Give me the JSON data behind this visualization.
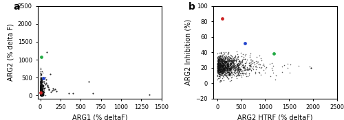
{
  "panel_a": {
    "title": "a",
    "xlabel": "ARG1 (% deltaF)",
    "ylabel": "ARG2 (% delta F)",
    "xlim": [
      -30,
      1500
    ],
    "ylim": [
      -80,
      2500
    ],
    "xticks": [
      0,
      250,
      500,
      750,
      1000,
      1250,
      1500
    ],
    "yticks": [
      0,
      500,
      1000,
      1500,
      2000,
      2500
    ],
    "n_background": 1593,
    "dot_color": "#111111",
    "dot_alpha": 0.85,
    "dot_size": 1.2,
    "cluster_x_scale": 8,
    "cluster_y_scale": 120,
    "outlier_x": [
      80,
      120,
      50,
      600,
      650,
      350,
      1350,
      70,
      90,
      160,
      110,
      180,
      200,
      30,
      55,
      75,
      400,
      45,
      95,
      130,
      65,
      85,
      105,
      145,
      170
    ],
    "outlier_y": [
      1220,
      600,
      390,
      380,
      60,
      60,
      20,
      450,
      300,
      200,
      150,
      170,
      130,
      280,
      220,
      350,
      60,
      190,
      240,
      100,
      320,
      260,
      180,
      140,
      160
    ],
    "highlight_red_x": 8,
    "highlight_red_y": 85,
    "highlight_green_x": 12,
    "highlight_green_y": 1070,
    "highlight_blue_x": 38,
    "highlight_blue_y": 480,
    "highlight_size": 12,
    "highlight_red": "#cc2222",
    "highlight_green": "#22aa44",
    "highlight_blue": "#2244cc"
  },
  "panel_b": {
    "title": "b",
    "xlabel": "ARG2 HTRF (% deltaF)",
    "ylabel": "ARG2 Inhibition (%)",
    "xlim": [
      -80,
      2500
    ],
    "ylim": [
      -20,
      100
    ],
    "xticks": [
      0,
      500,
      1000,
      1500,
      2000,
      2500
    ],
    "yticks": [
      -20,
      0,
      20,
      40,
      60,
      80,
      100
    ],
    "n_background": 1235,
    "dot_color": "#111111",
    "dot_alpha": 0.7,
    "dot_size": 1.2,
    "cluster_x_scale": 250,
    "cluster_y_mean": 22,
    "cluster_y_std": 7,
    "outlier_x": [
      1950
    ],
    "outlier_y": [
      20
    ],
    "highlight_red_x": 105,
    "highlight_red_y": 84,
    "highlight_blue_x": 580,
    "highlight_blue_y": 52,
    "highlight_green_x": 1175,
    "highlight_green_y": 38,
    "highlight_size": 12,
    "highlight_red": "#cc2222",
    "highlight_green": "#22aa44",
    "highlight_blue": "#2244cc"
  },
  "background_color": "#ffffff",
  "label_fontsize": 7,
  "tick_fontsize": 6,
  "panel_label_fontsize": 10
}
